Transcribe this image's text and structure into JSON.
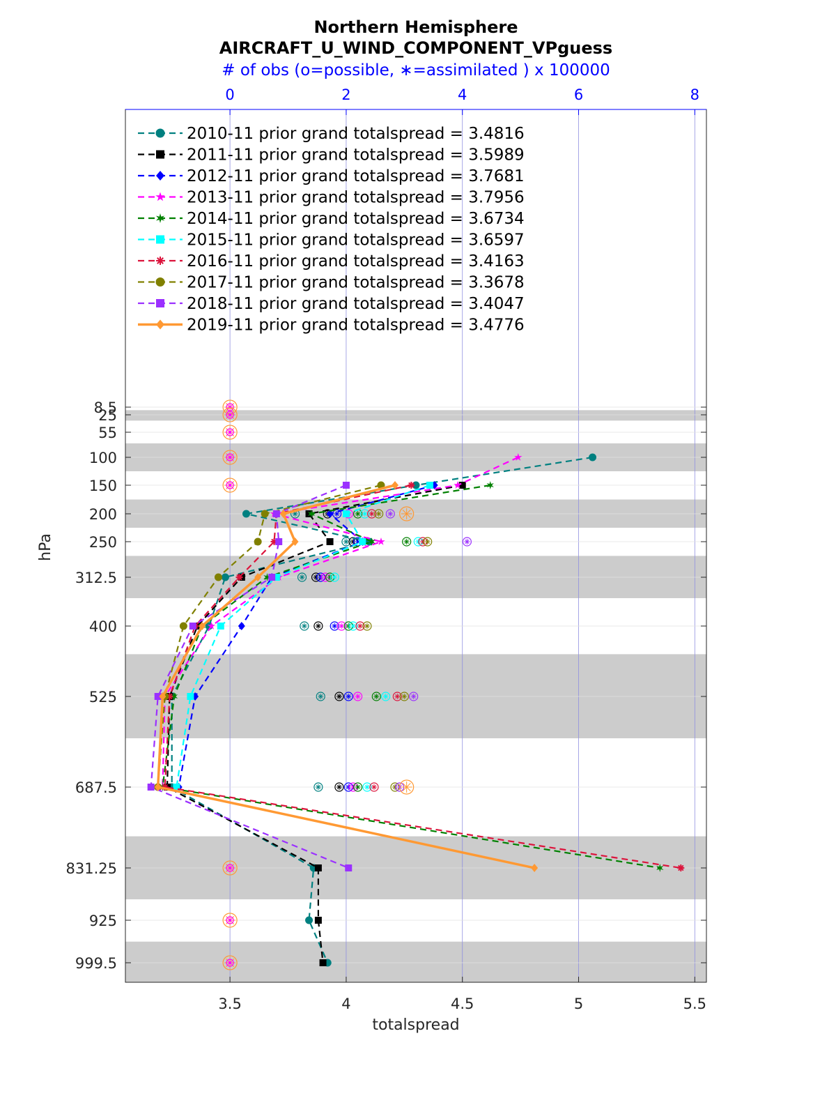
{
  "chart_data": {
    "type": "line",
    "title": [
      "Northern Hemisphere",
      "AIRCRAFT_U_WIND_COMPONENT_VPguess"
    ],
    "top_axis_title": "# of obs (o=possible, ∗=assimilated ) x 100000",
    "xlabel": "totalspread",
    "ylabel": "hPa",
    "xlim": [
      3.05,
      5.55
    ],
    "xticks": [
      "3.5",
      "4",
      "4.5",
      "5",
      "5.5"
    ],
    "top_xlim": [
      -1.8,
      8.2
    ],
    "top_xticks": [
      "0",
      "2",
      "4",
      "6",
      "8"
    ],
    "levels": [
      8.5,
      25,
      55,
      100,
      150,
      200,
      250,
      312.5,
      400,
      525,
      687.5,
      831.25,
      925,
      999.5
    ],
    "level_labels": [
      "8.5",
      "25",
      "55",
      "100",
      "150",
      "200",
      "250",
      "312.5",
      "400",
      "525",
      "687.5",
      "831.25",
      "925",
      "999.5"
    ],
    "shaded_bands_hPa": [
      [
        15,
        35
      ],
      [
        75,
        125
      ],
      [
        175,
        225
      ],
      [
        275,
        350
      ],
      [
        450,
        600
      ],
      [
        775,
        887.5
      ],
      [
        962.5,
        1037.5
      ]
    ],
    "grid": true,
    "legend_position": "top-left",
    "series": [
      {
        "name": "2010-11 prior grand totalspread = 3.4816",
        "color": "#008080",
        "linestyle": "dashed",
        "marker": "circle",
        "values": [
          null,
          null,
          null,
          5.06,
          4.3,
          3.57,
          4.1,
          3.48,
          3.41,
          3.25,
          3.25,
          3.86,
          3.84,
          3.92
        ]
      },
      {
        "name": "2011-11 prior grand totalspread = 3.5989",
        "color": "#000000",
        "linestyle": "dashed",
        "marker": "square",
        "values": [
          null,
          null,
          null,
          null,
          4.5,
          3.84,
          3.93,
          3.55,
          3.36,
          3.24,
          3.23,
          3.88,
          3.88,
          3.9
        ]
      },
      {
        "name": "2012-11 prior grand totalspread = 3.7681",
        "color": "#0000ff",
        "linestyle": "dashed",
        "marker": "diamond",
        "values": [
          null,
          null,
          null,
          null,
          4.38,
          3.93,
          4.07,
          3.68,
          3.55,
          3.35,
          3.28,
          null,
          null,
          null
        ]
      },
      {
        "name": "2013-11 prior grand totalspread = 3.7956",
        "color": "#ff00ff",
        "linestyle": "dashed",
        "marker": "star",
        "values": [
          null,
          null,
          null,
          4.74,
          4.48,
          3.69,
          4.15,
          3.71,
          3.42,
          3.22,
          3.21,
          null,
          null,
          null
        ]
      },
      {
        "name": "2014-11 prior grand totalspread = 3.6734",
        "color": "#008000",
        "linestyle": "dashed",
        "marker": "hexagram",
        "values": [
          null,
          null,
          null,
          null,
          4.62,
          3.85,
          4.11,
          3.66,
          3.38,
          3.26,
          3.21,
          5.35,
          null,
          null
        ]
      },
      {
        "name": "2015-11 prior grand totalspread = 3.6597",
        "color": "#00ffff",
        "linestyle": "dashed",
        "marker": "square",
        "values": [
          null,
          null,
          null,
          null,
          4.36,
          4.0,
          4.07,
          3.7,
          3.46,
          3.33,
          3.27,
          null,
          null,
          null
        ]
      },
      {
        "name": "2016-11 prior grand totalspread = 3.4163",
        "color": "#dc143c",
        "linestyle": "dashed",
        "marker": "asterisk",
        "values": [
          null,
          null,
          null,
          null,
          4.28,
          3.7,
          3.69,
          3.54,
          3.35,
          3.24,
          3.22,
          5.44,
          null,
          null
        ]
      },
      {
        "name": "2017-11 prior grand totalspread = 3.3678",
        "color": "#808000",
        "linestyle": "dashed",
        "marker": "circle",
        "values": [
          null,
          null,
          null,
          null,
          4.15,
          3.65,
          3.62,
          3.45,
          3.3,
          3.22,
          3.19,
          null,
          null,
          null
        ]
      },
      {
        "name": "2018-11 prior grand totalspread = 3.4047",
        "color": "#9b30ff",
        "linestyle": "dashed",
        "marker": "square",
        "values": [
          null,
          null,
          null,
          null,
          4.0,
          3.7,
          3.71,
          3.68,
          3.34,
          3.19,
          3.16,
          4.01,
          null,
          null
        ]
      },
      {
        "name": "2019-11 prior grand totalspread = 3.4776",
        "color": "#ff9933",
        "linestyle": "solid",
        "marker": "diamond",
        "values": [
          null,
          null,
          null,
          null,
          4.21,
          3.73,
          3.78,
          3.62,
          3.38,
          3.21,
          3.19,
          4.81,
          null,
          null
        ]
      }
    ],
    "obs_markers": {
      "upper_levels_x_in_obs_units": 0,
      "level_x_values_totalspread": {
        "200": [
          3.78,
          3.92,
          3.96,
          4.01,
          4.05,
          4.08,
          4.11,
          4.14,
          4.19,
          4.26
        ],
        "250": [
          4.0,
          4.03,
          4.05,
          4.09,
          4.26,
          4.31,
          4.33,
          4.35,
          4.52
        ],
        "312.5": [
          3.81,
          3.87,
          3.89,
          3.91,
          3.93,
          3.95
        ],
        "400": [
          3.82,
          3.88,
          3.95,
          3.98,
          4.01,
          4.03,
          4.06,
          4.09
        ],
        "525": [
          3.89,
          3.97,
          4.01,
          4.05,
          4.13,
          4.17,
          4.22,
          4.25,
          4.29
        ],
        "687.5": [
          3.88,
          3.97,
          4.01,
          4.03,
          4.05,
          4.09,
          4.12,
          4.21,
          4.23,
          4.26
        ]
      }
    }
  }
}
